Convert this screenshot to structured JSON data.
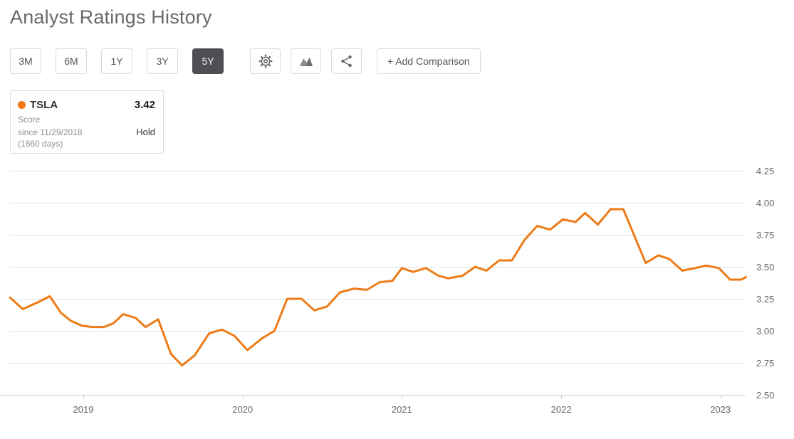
{
  "page": {
    "title": "Analyst Ratings History"
  },
  "toolbar": {
    "ranges": [
      {
        "label": "3M",
        "selected": false
      },
      {
        "label": "6M",
        "selected": false
      },
      {
        "label": "1Y",
        "selected": false
      },
      {
        "label": "3Y",
        "selected": false
      },
      {
        "label": "5Y",
        "selected": true
      }
    ],
    "icons": [
      {
        "name": "settings-gear"
      },
      {
        "name": "chart-style"
      },
      {
        "name": "share"
      }
    ],
    "add_comparison_label": "+ Add Comparison"
  },
  "legend": {
    "ticker": "TSLA",
    "score_value": "3.42",
    "score_label": "Score",
    "since_line1": "since 11/29/2018",
    "since_line2": "(1860 days)",
    "rating": "Hold",
    "dot_color": "#ef7815"
  },
  "chart_data": {
    "type": "line",
    "title": "Analyst Ratings History",
    "series_name": "TSLA analyst rating score",
    "line_color": "#ee7b18",
    "grid": true,
    "legend_position": "top-left",
    "ylim": [
      2.5,
      4.25
    ],
    "xlim": [
      2018.54,
      2023.17
    ],
    "y_ticks": [
      "4.25",
      "4.00",
      "3.75",
      "3.50",
      "3.25",
      "3.00",
      "2.75",
      "2.50"
    ],
    "x_ticks": [
      "2019",
      "2020",
      "2021",
      "2022",
      "2023"
    ],
    "points": [
      [
        2018.54,
        3.26
      ],
      [
        2018.62,
        3.17
      ],
      [
        2018.71,
        3.22
      ],
      [
        2018.79,
        3.27
      ],
      [
        2018.86,
        3.14
      ],
      [
        2018.92,
        3.08
      ],
      [
        2018.99,
        3.04
      ],
      [
        2019.06,
        3.03
      ],
      [
        2019.13,
        3.03
      ],
      [
        2019.19,
        3.06
      ],
      [
        2019.25,
        3.13
      ],
      [
        2019.33,
        3.1
      ],
      [
        2019.39,
        3.03
      ],
      [
        2019.47,
        3.09
      ],
      [
        2019.55,
        2.82
      ],
      [
        2019.62,
        2.73
      ],
      [
        2019.7,
        2.81
      ],
      [
        2019.79,
        2.98
      ],
      [
        2019.87,
        3.01
      ],
      [
        2019.95,
        2.96
      ],
      [
        2020.03,
        2.85
      ],
      [
        2020.12,
        2.94
      ],
      [
        2020.2,
        3.0
      ],
      [
        2020.28,
        3.25
      ],
      [
        2020.37,
        3.25
      ],
      [
        2020.45,
        3.16
      ],
      [
        2020.53,
        3.19
      ],
      [
        2020.61,
        3.3
      ],
      [
        2020.7,
        3.33
      ],
      [
        2020.78,
        3.32
      ],
      [
        2020.86,
        3.38
      ],
      [
        2020.94,
        3.39
      ],
      [
        2021.0,
        3.49
      ],
      [
        2021.07,
        3.46
      ],
      [
        2021.15,
        3.49
      ],
      [
        2021.23,
        3.43
      ],
      [
        2021.29,
        3.41
      ],
      [
        2021.38,
        3.43
      ],
      [
        2021.46,
        3.5
      ],
      [
        2021.53,
        3.47
      ],
      [
        2021.61,
        3.55
      ],
      [
        2021.69,
        3.55
      ],
      [
        2021.77,
        3.71
      ],
      [
        2021.85,
        3.82
      ],
      [
        2021.93,
        3.79
      ],
      [
        2022.01,
        3.87
      ],
      [
        2022.09,
        3.85
      ],
      [
        2022.15,
        3.92
      ],
      [
        2022.23,
        3.83
      ],
      [
        2022.31,
        3.95
      ],
      [
        2022.39,
        3.95
      ],
      [
        2022.46,
        3.74
      ],
      [
        2022.53,
        3.53
      ],
      [
        2022.61,
        3.59
      ],
      [
        2022.68,
        3.56
      ],
      [
        2022.76,
        3.47
      ],
      [
        2022.84,
        3.49
      ],
      [
        2022.91,
        3.51
      ],
      [
        2022.99,
        3.49
      ],
      [
        2023.06,
        3.4
      ],
      [
        2023.13,
        3.4
      ],
      [
        2023.16,
        3.42
      ]
    ]
  }
}
